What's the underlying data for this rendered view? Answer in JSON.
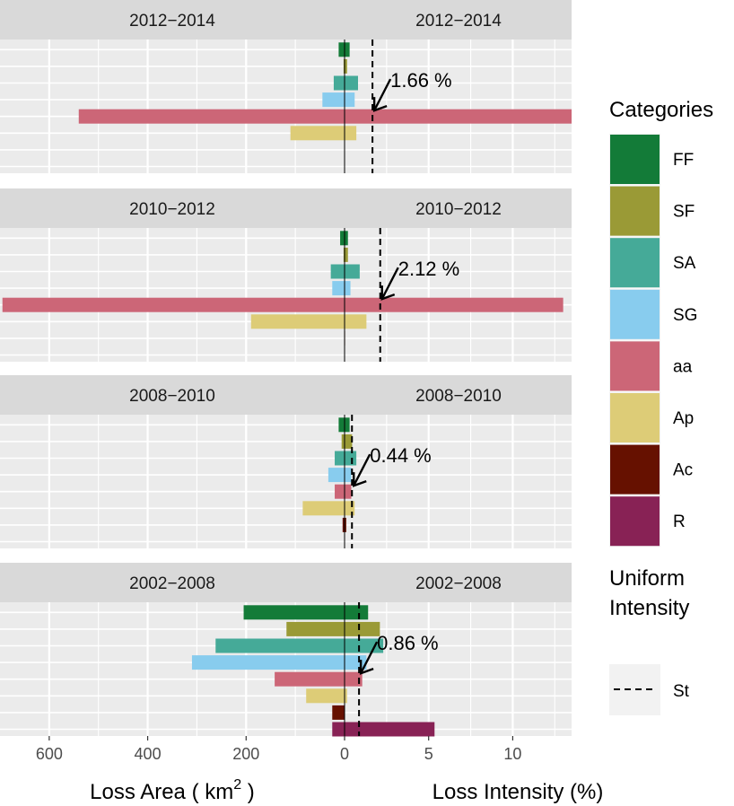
{
  "chart_data": {
    "type": "bar",
    "layout": "faceted back-to-back horizontal bars (two x-scales sharing a zero line)",
    "left_axis": {
      "title": "Loss Area ( km",
      "title_sup": "2",
      "title_end": " )",
      "ticks": [
        "600",
        "400",
        "200",
        "0"
      ],
      "tick_values": [
        600,
        400,
        200,
        0
      ],
      "range": [
        700,
        0
      ]
    },
    "right_axis": {
      "title": "Loss Intensity (%)",
      "ticks": [
        "0",
        "5",
        "10"
      ],
      "tick_values": [
        0,
        5,
        10
      ],
      "range": [
        0,
        13.5
      ]
    },
    "categories": [
      "FF",
      "SF",
      "SA",
      "SG",
      "aa",
      "Ap",
      "Ac",
      "R"
    ],
    "colors": {
      "FF": "#137b38",
      "SF": "#9a9a36",
      "SA": "#45aa98",
      "SG": "#88ccee",
      "aa": "#cc6677",
      "Ap": "#ddcc77",
      "Ac": "#661100",
      "R": "#882255"
    },
    "facets": [
      {
        "label": "2012−2014",
        "uniform_intensity": 1.66,
        "annotation": "1.66 %",
        "loss_area": {
          "FF": 12,
          "SF": 2,
          "SA": 22,
          "SG": 45,
          "aa": 540,
          "Ap": 110,
          "Ac": 0,
          "R": 0
        },
        "loss_intensity": {
          "FF": 0.3,
          "SF": 0.15,
          "SA": 0.8,
          "SG": 0.6,
          "aa": 13.5,
          "Ap": 0.7,
          "Ac": 0,
          "R": 0
        }
      },
      {
        "label": "2010−2012",
        "uniform_intensity": 2.12,
        "annotation": "2.12 %",
        "loss_area": {
          "FF": 9,
          "SF": 2,
          "SA": 28,
          "SG": 25,
          "aa": 695,
          "Ap": 190,
          "Ac": 0,
          "R": 0
        },
        "loss_intensity": {
          "FF": 0.2,
          "SF": 0.2,
          "SA": 0.9,
          "SG": 0.35,
          "aa": 13.0,
          "Ap": 1.3,
          "Ac": 0.03,
          "R": 0
        }
      },
      {
        "label": "2008−2010",
        "uniform_intensity": 0.44,
        "annotation": "0.44 %",
        "loss_area": {
          "FF": 12,
          "SF": 6,
          "SA": 20,
          "SG": 33,
          "aa": 20,
          "Ap": 85,
          "Ac": 4,
          "R": 0
        },
        "loss_intensity": {
          "FF": 0.3,
          "SF": 0.45,
          "SA": 0.7,
          "SG": 0.4,
          "aa": 0.4,
          "Ap": 0.6,
          "Ac": 0.1,
          "R": 0
        }
      },
      {
        "label": "2002−2008",
        "uniform_intensity": 0.86,
        "annotation": "0.86 %",
        "loss_area": {
          "FF": 205,
          "SF": 118,
          "SA": 262,
          "SG": 310,
          "aa": 142,
          "Ap": 78,
          "Ac": 25,
          "R": 25
        },
        "loss_intensity": {
          "FF": 1.4,
          "SF": 2.1,
          "SA": 2.3,
          "SG": 1.3,
          "aa": 1.05,
          "Ap": 0.15,
          "Ac": 0,
          "R": 5.35
        }
      }
    ],
    "legend": {
      "title": "Categories",
      "items": [
        "FF",
        "SF",
        "SA",
        "SG",
        "aa",
        "Ap",
        "Ac",
        "R"
      ],
      "position": "right"
    },
    "linetype_legend": {
      "title_line1": "Uniform",
      "title_line2": "Intensity",
      "item": "St"
    },
    "grid": true
  }
}
